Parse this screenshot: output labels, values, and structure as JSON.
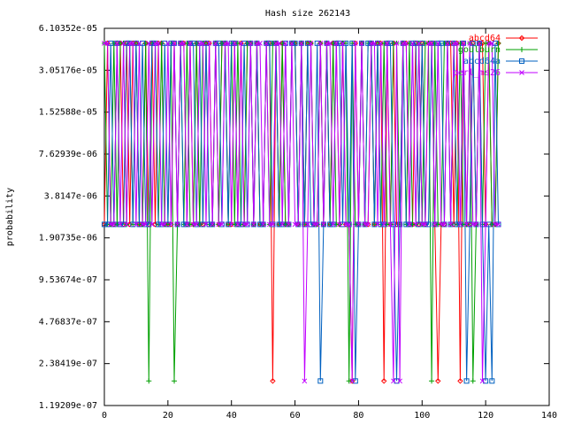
{
  "chart_data": {
    "type": "line",
    "title": "Hash size 262143",
    "xlabel": "",
    "ylabel": "probability",
    "xlim": [
      0,
      140
    ],
    "x_ticks": [
      "0",
      "20",
      "40",
      "60",
      "80",
      "100",
      "120",
      "140"
    ],
    "y_scale": "log2",
    "ylim": [
      1.19209e-07,
      6.10352e-05
    ],
    "y_ticks": [
      "1.19209e-07",
      "2.38419e-07",
      "4.76837e-07",
      "9.53674e-07",
      "1.90735e-06",
      "3.8147e-06",
      "7.62939e-06",
      "1.52588e-05",
      "3.05176e-05",
      "6.10352e-05"
    ],
    "legend_position": "top-right",
    "grid": false,
    "x_range": [
      0,
      124
    ],
    "levels": {
      "high": 4.76837e-05,
      "low": 2.38419e-06,
      "drop": 1.78814e-07
    },
    "series": [
      {
        "name": "abcd64",
        "color": "#ff0000",
        "marker": "diamond",
        "pattern": "LHLLHHLHLHHLLHLHLHHLLLHLHHLHLHLLHHLHLHHLLHLHLHHLHLLHHLHLHLLHHLHLHHLLHLHLHHLHLLHHLHLLHLHHLHLHLLHHLLHLHLHHLHLLHHLHLHLLHLHH",
        "drops": [
          53,
          78,
          88,
          105,
          112
        ]
      },
      {
        "name": "goulburn",
        "color": "#00a000",
        "marker": "plus",
        "pattern": "HLLHLHHLHLHLLHLHHLHLLHHLHLHLLHLHHLLHLHHLHLHLLHHLHLLHLHHLHLLHHLHLHHLLHLHLHLLHHLHLLHLHHLHLHLLHHLHLHLLHLHHLHLLHHLHLHLLHHLHLH",
        "drops": [
          14,
          22,
          77,
          103,
          116
        ]
      },
      {
        "name": "abcd64a",
        "color": "#0060c0",
        "marker": "square",
        "pattern": "LLHLHLLHHLHLHLLHHLLHLHHLHLLHHLHLHLLHHLHLHHLLHLHLHLLHHLHLLHLHHLHLHLLHHLHLLHHLHLHLLHLHHLHLLHHLHLHLLHHLHLLHLHHLHLHLLHHLHLHLL",
        "drops": [
          68,
          79,
          92,
          114,
          120,
          122
        ]
      },
      {
        "name": "perl_ms26",
        "color": "#c000ff",
        "marker": "x",
        "pattern": "HHLLHLHLHHLHLLHLHHLLHLHLHHLHLLHHLHLHLLHHLHLHLLHLHHLHLLHHLHLHLLHHLHLLHLHHLHLHLLHHLHLLHHLHLHLLHLHHLHLHLLHHLHLLHLHHLHLHLLHHL",
        "drops": [
          63,
          78,
          91,
          93,
          119
        ]
      }
    ]
  }
}
